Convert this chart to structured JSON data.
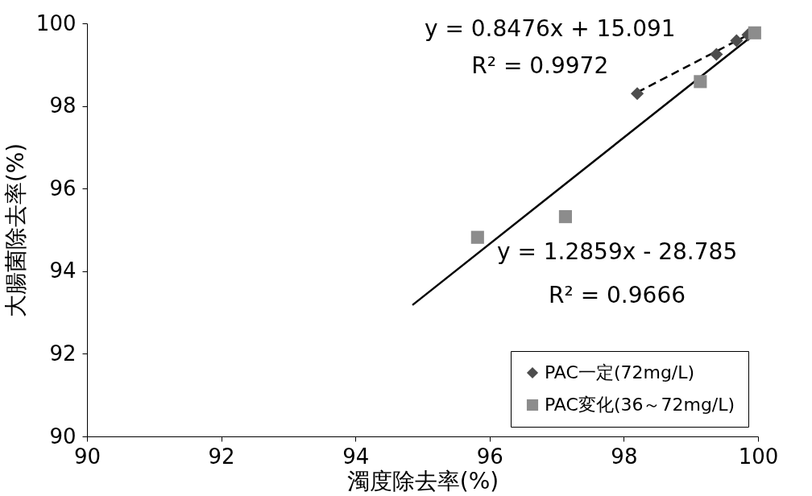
{
  "chart_data": {
    "type": "scatter",
    "xlabel": "濁度除去率(%)",
    "ylabel": "大腸菌除去率(%)",
    "xlim": [
      90,
      100
    ],
    "xticks": [
      90,
      92,
      94,
      96,
      98,
      100
    ],
    "ylim": [
      90,
      100
    ],
    "yticks": [
      90,
      92,
      94,
      96,
      98,
      100
    ],
    "grid": false,
    "legend": "bottom right",
    "series": [
      {
        "name": "PAC一定(72mg/L)",
        "marker": "diamond",
        "color": "#4d4d4d",
        "x": [
          98.2,
          99.38,
          99.68,
          99.85
        ],
        "values": [
          98.3,
          99.25,
          99.58,
          99.72
        ]
      },
      {
        "name": "PAC変化(36～72mg/L)",
        "marker": "square",
        "color": "#8c8c8c",
        "x": [
          95.82,
          97.13,
          99.14,
          99.95
        ],
        "values": [
          94.82,
          95.32,
          98.59,
          99.77
        ]
      },
      {
        "type": "line",
        "marker": "none",
        "line_style": "dashed",
        "color": "#000000",
        "x": [
          98.2,
          99.85
        ],
        "values": [
          98.33,
          99.72
        ]
      },
      {
        "type": "line",
        "marker": "none",
        "line_style": "solid",
        "color": "#000000",
        "x": [
          94.85,
          99.9
        ],
        "values": [
          93.18,
          99.68
        ]
      }
    ],
    "annotations": [
      "y = 0.8476x + 15.091",
      "R² = 0.9972",
      "y = 1.2859x - 28.785",
      "R² = 0.9666"
    ]
  }
}
